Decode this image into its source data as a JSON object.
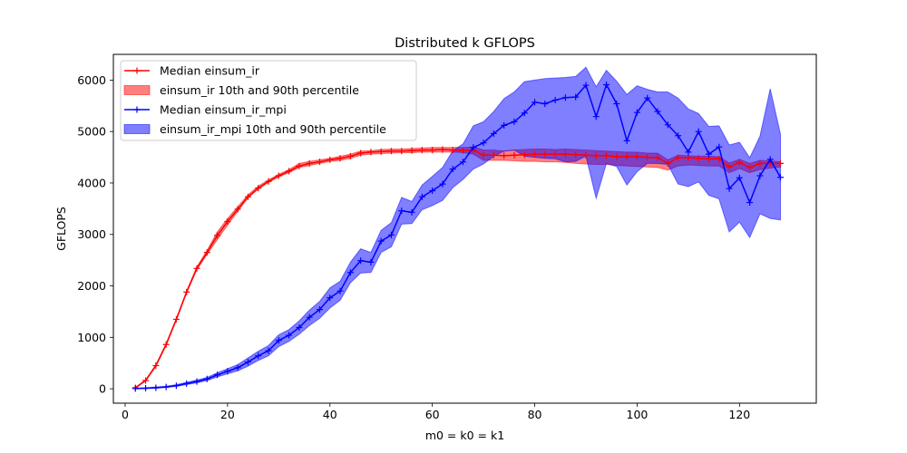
{
  "chart_data": {
    "type": "line",
    "title": "Distributed k GFLOPS",
    "xlabel": "m0 = k0 = k1",
    "ylabel": "GFLOPS",
    "xlim": [
      -2.3,
      135.0
    ],
    "ylim": [
      -280,
      6500
    ],
    "xticks": [
      0,
      20,
      40,
      60,
      80,
      100,
      120
    ],
    "yticks": [
      0,
      1000,
      2000,
      3000,
      4000,
      5000,
      6000
    ],
    "grid": false,
    "legend_position": "upper-left",
    "x": [
      2,
      4,
      6,
      8,
      10,
      12,
      14,
      16,
      18,
      20,
      22,
      24,
      26,
      28,
      30,
      32,
      34,
      36,
      38,
      40,
      42,
      44,
      46,
      48,
      50,
      52,
      54,
      56,
      58,
      60,
      62,
      64,
      66,
      68,
      70,
      72,
      74,
      76,
      78,
      80,
      82,
      84,
      86,
      88,
      90,
      92,
      94,
      96,
      98,
      100,
      102,
      104,
      106,
      108,
      110,
      112,
      114,
      116,
      118,
      120,
      122,
      124,
      126,
      128
    ],
    "series": [
      {
        "name": "Median einsum_ir",
        "color": "#ff0000",
        "band_label": "einsum_ir 10th and 90th percentile",
        "band_color": "#ff0000",
        "median": [
          20,
          160,
          450,
          860,
          1350,
          1880,
          2340,
          2650,
          2980,
          3250,
          3490,
          3730,
          3900,
          4030,
          4140,
          4230,
          4330,
          4380,
          4410,
          4450,
          4480,
          4520,
          4580,
          4600,
          4610,
          4620,
          4620,
          4630,
          4640,
          4640,
          4650,
          4640,
          4630,
          4640,
          4540,
          4540,
          4530,
          4540,
          4550,
          4560,
          4560,
          4560,
          4560,
          4550,
          4540,
          4530,
          4530,
          4510,
          4510,
          4510,
          4500,
          4490,
          4380,
          4490,
          4490,
          4480,
          4470,
          4470,
          4310,
          4400,
          4300,
          4380,
          4380,
          4380
        ],
        "p10": [
          15,
          150,
          430,
          840,
          1330,
          1860,
          2310,
          2610,
          2900,
          3180,
          3450,
          3710,
          3880,
          4010,
          4120,
          4200,
          4300,
          4340,
          4380,
          4420,
          4440,
          4480,
          4540,
          4560,
          4570,
          4580,
          4590,
          4590,
          4600,
          4600,
          4600,
          4600,
          4590,
          4560,
          4440,
          4440,
          4440,
          4430,
          4420,
          4420,
          4410,
          4410,
          4400,
          4380,
          4370,
          4360,
          4360,
          4340,
          4330,
          4320,
          4310,
          4300,
          4250,
          4330,
          4350,
          4340,
          4330,
          4330,
          4200,
          4280,
          4200,
          4260,
          4290,
          4310
        ],
        "p90": [
          25,
          175,
          470,
          880,
          1370,
          1900,
          2370,
          2690,
          3050,
          3310,
          3540,
          3770,
          3940,
          4060,
          4170,
          4260,
          4380,
          4420,
          4450,
          4480,
          4520,
          4560,
          4620,
          4630,
          4650,
          4660,
          4660,
          4670,
          4680,
          4690,
          4690,
          4690,
          4690,
          4700,
          4640,
          4640,
          4620,
          4640,
          4650,
          4660,
          4660,
          4650,
          4660,
          4650,
          4640,
          4630,
          4620,
          4610,
          4600,
          4600,
          4580,
          4580,
          4450,
          4540,
          4530,
          4520,
          4520,
          4510,
          4390,
          4460,
          4380,
          4440,
          4430,
          4410
        ]
      },
      {
        "name": "Median einsum_ir_mpi",
        "color": "#0000ff",
        "band_label": "einsum_ir_mpi 10th and 90th percentile",
        "band_color": "#0000ff",
        "median": [
          5,
          10,
          20,
          35,
          60,
          100,
          140,
          190,
          270,
          340,
          410,
          520,
          640,
          740,
          940,
          1040,
          1190,
          1390,
          1540,
          1770,
          1900,
          2260,
          2490,
          2460,
          2870,
          2990,
          3460,
          3430,
          3730,
          3850,
          3980,
          4270,
          4410,
          4690,
          4780,
          4960,
          5120,
          5190,
          5360,
          5570,
          5540,
          5610,
          5660,
          5670,
          5900,
          5290,
          5910,
          5540,
          4820,
          5370,
          5650,
          5390,
          5130,
          4920,
          4600,
          5000,
          4560,
          4700,
          3890,
          4100,
          3620,
          4140,
          4460,
          4110
        ],
        "p10": [
          2,
          5,
          12,
          25,
          45,
          80,
          115,
          160,
          230,
          290,
          350,
          440,
          550,
          640,
          820,
          920,
          1060,
          1230,
          1370,
          1570,
          1720,
          2060,
          2250,
          2260,
          2650,
          2760,
          3200,
          3210,
          3480,
          3560,
          3660,
          3910,
          4070,
          4270,
          4370,
          4520,
          4620,
          4640,
          4520,
          4500,
          4480,
          4470,
          4410,
          4420,
          4520,
          3700,
          4380,
          4320,
          3960,
          4220,
          4380,
          4380,
          4360,
          3980,
          3930,
          4020,
          3760,
          3690,
          3050,
          3240,
          2940,
          3400,
          3310,
          3280
        ],
        "p90": [
          10,
          20,
          35,
          50,
          80,
          125,
          170,
          220,
          310,
          390,
          470,
          600,
          730,
          840,
          1050,
          1150,
          1320,
          1530,
          1700,
          1960,
          2090,
          2460,
          2720,
          2650,
          3080,
          3230,
          3720,
          3640,
          3960,
          4130,
          4300,
          4630,
          4760,
          5110,
          5190,
          5390,
          5640,
          5770,
          5970,
          6000,
          6030,
          6040,
          6050,
          6070,
          6250,
          5870,
          6190,
          5980,
          5720,
          5890,
          5820,
          5770,
          5770,
          5650,
          5440,
          5350,
          5100,
          5110,
          4740,
          4790,
          4490,
          4910,
          5830,
          4950
        ]
      }
    ]
  }
}
